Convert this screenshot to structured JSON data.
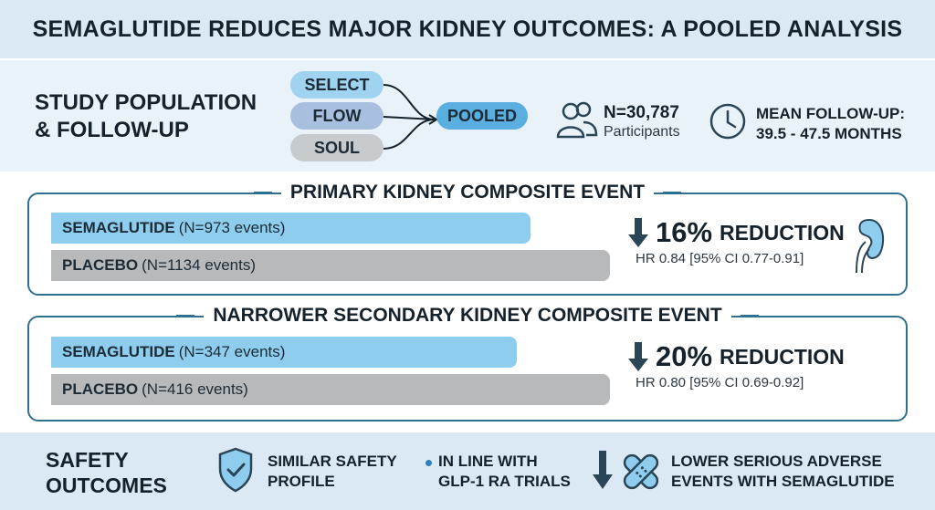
{
  "title": "SEMAGLUTIDE REDUCES MAJOR KIDNEY OUTCOMES: A POOLED ANALYSIS",
  "study": {
    "label_line1": "STUDY POPULATION",
    "label_line2": "& FOLLOW-UP",
    "trials": [
      "SELECT",
      "FLOW",
      "SOUL"
    ],
    "pooled": "POOLED",
    "n_value": "N=30,787",
    "n_sub": "Participants",
    "followup_line1": "MEAN FOLLOW-UP:",
    "followup_line2": "39.5 - 47.5 MONTHS"
  },
  "primary": {
    "title": "PRIMARY KIDNEY COMPOSITE EVENT",
    "sema_label": "SEMAGLUTIDE",
    "sema_detail": "(N=973 events)",
    "sema_events": 973,
    "placebo_label": "PLACEBO",
    "placebo_detail": "(N=1134 events)",
    "placebo_events": 1134,
    "pct": "16%",
    "reduction_word": "REDUCTION",
    "hr": "HR 0.84 [95% CI 0.77-0.91]"
  },
  "secondary": {
    "title": "NARROWER SECONDARY KIDNEY COMPOSITE EVENT",
    "sema_label": "SEMAGLUTIDE",
    "sema_detail": "(N=347 events)",
    "sema_events": 347,
    "placebo_label": "PLACEBO",
    "placebo_detail": "(N=416 events)",
    "placebo_events": 416,
    "pct": "20%",
    "reduction_word": "REDUCTION",
    "hr": "HR 0.80 [95% CI 0.69-0.92]"
  },
  "safety": {
    "label_line1": "SAFETY",
    "label_line2": "OUTCOMES",
    "item1_line1": "SIMILAR SAFETY",
    "item1_line2": "PROFILE",
    "item2_line1": "IN LINE WITH",
    "item2_line2": "GLP-1 RA TRIALS",
    "item3_line1": "LOWER SERIOUS ADVERSE",
    "item3_line2": "EVENTS WITH SEMAGLUTIDE"
  },
  "icons": {
    "participants": "people-icon",
    "followup": "clock-icon",
    "reduction": "down-arrow-icon",
    "organ": "kidney-icon",
    "safety": "shield-check-icon",
    "adverse": "bandage-icon"
  },
  "colors": {
    "semaglutide_bar": "#8ecdee",
    "placebo_bar": "#b7b9ba",
    "panel_border": "#2f6f8f",
    "pooled_pill": "#5aaee0",
    "header_bg": "#dbe9f4"
  }
}
